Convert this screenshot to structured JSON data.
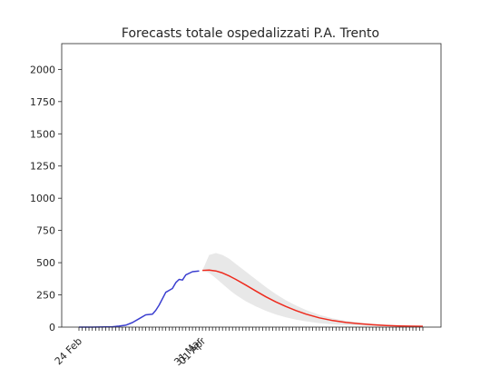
{
  "chart_data": {
    "type": "line",
    "title": "Forecasts totale ospedalizzati P.A. Trento",
    "xlabel": "",
    "ylabel": "",
    "ylim": [
      0,
      2200
    ],
    "x_range": [
      "2020-02-24",
      "2020-06-06"
    ],
    "y_ticks": [
      0,
      250,
      500,
      750,
      1000,
      1250,
      1500,
      1750,
      2000
    ],
    "x_tick_labels": [
      {
        "date": "2020-02-24",
        "label": "24 Feb"
      },
      {
        "date": "2020-03-31",
        "label": "31 Mar"
      },
      {
        "date": "2020-04-01",
        "label": "01 Apr"
      }
    ],
    "grid": false,
    "legend": "none",
    "colors": {
      "observed": "#3b3fd0",
      "forecast": "#ee2a1d",
      "interval": "#e8e8e8"
    },
    "series": [
      {
        "kind": "observed",
        "x": [
          "2020-02-24",
          "2020-02-26",
          "2020-02-28",
          "2020-03-01",
          "2020-03-03",
          "2020-03-05",
          "2020-03-07",
          "2020-03-09",
          "2020-03-11",
          "2020-03-13",
          "2020-03-15",
          "2020-03-17",
          "2020-03-18",
          "2020-03-19",
          "2020-03-21",
          "2020-03-22",
          "2020-03-23",
          "2020-03-24",
          "2020-03-25",
          "2020-03-26",
          "2020-03-27",
          "2020-03-29",
          "2020-03-31"
        ],
        "values": [
          0,
          0,
          0,
          1,
          2,
          3,
          8,
          15,
          35,
          65,
          95,
          100,
          130,
          170,
          270,
          285,
          300,
          345,
          370,
          365,
          405,
          430,
          435
        ]
      },
      {
        "kind": "forecast",
        "x": [
          "2020-04-01",
          "2020-04-03",
          "2020-04-05",
          "2020-04-07",
          "2020-04-09",
          "2020-04-11",
          "2020-04-14",
          "2020-04-17",
          "2020-04-20",
          "2020-04-23",
          "2020-04-26",
          "2020-04-29",
          "2020-05-02",
          "2020-05-06",
          "2020-05-10",
          "2020-05-14",
          "2020-05-18",
          "2020-05-22",
          "2020-05-26",
          "2020-05-30",
          "2020-06-03",
          "2020-06-06"
        ],
        "values": [
          440,
          443,
          436,
          420,
          397,
          370,
          326,
          280,
          235,
          195,
          160,
          128,
          101,
          72,
          51,
          36,
          26,
          18,
          13,
          9,
          7,
          6
        ],
        "lower": [
          440,
          420,
          380,
          335,
          290,
          250,
          200,
          160,
          126,
          98,
          76,
          58,
          45,
          31,
          22,
          15,
          11,
          8,
          6,
          5,
          4,
          3
        ],
        "upper": [
          440,
          560,
          575,
          560,
          530,
          490,
          430,
          370,
          310,
          255,
          208,
          168,
          133,
          95,
          68,
          49,
          35,
          25,
          18,
          13,
          10,
          8
        ]
      }
    ]
  }
}
